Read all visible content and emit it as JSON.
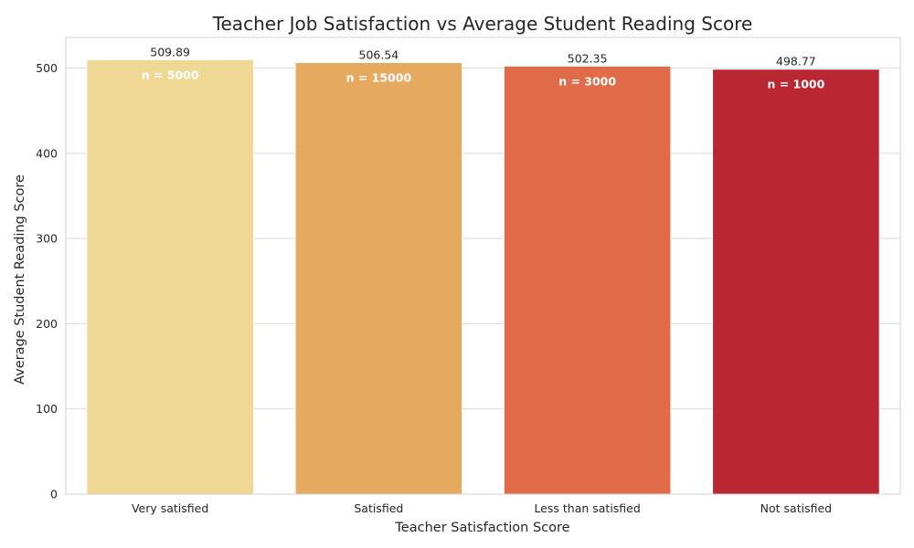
{
  "chart_data": {
    "type": "bar",
    "title": "Teacher Job Satisfaction vs Average Student Reading Score",
    "xlabel": "Teacher Satisfaction Score",
    "ylabel": "Average Student Reading Score",
    "categories": [
      "Very satisfied",
      "Satisfied",
      "Less than satisfied",
      "Not satisfied"
    ],
    "values": [
      509.89,
      506.54,
      502.35,
      498.77
    ],
    "value_labels": [
      "509.89",
      "506.54",
      "502.35",
      "498.77"
    ],
    "n_labels": [
      "n = 5000",
      "n = 15000",
      "n = 3000",
      "n = 1000"
    ],
    "colors": [
      "#eed893",
      "#e6a960",
      "#e06b48",
      "#bb2633"
    ],
    "ylim": [
      0,
      536
    ],
    "yticks": [
      0,
      100,
      200,
      300,
      400,
      500
    ],
    "grid": "horizontal",
    "legend": "none"
  }
}
